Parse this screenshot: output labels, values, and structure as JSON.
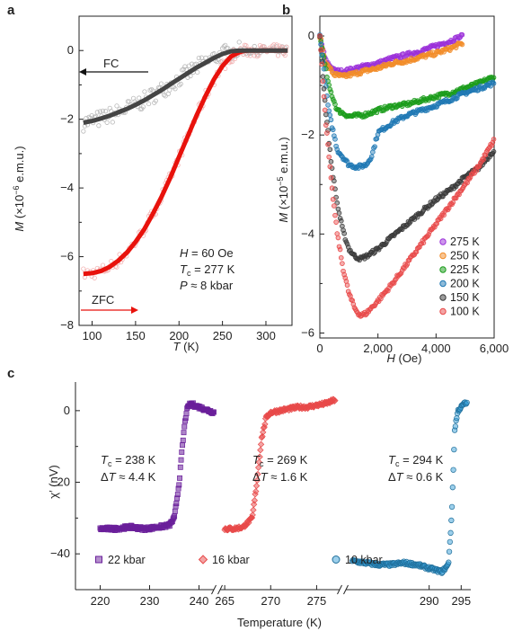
{
  "panels": {
    "a": {
      "letter": "a",
      "x_ticks": [
        "100",
        "150",
        "200",
        "250",
        "300"
      ],
      "y_ticks": [
        "0",
        "−2",
        "−4",
        "−6",
        "−8"
      ],
      "ylabel_pre": "M",
      "ylabel_mid": " (×10",
      "ylabel_sup": "−6",
      "ylabel_post": " e.m.u.)",
      "xlabel_var": "T",
      "xlabel_unit": " (K)",
      "fc_label": "FC",
      "zfc_label": "ZFC",
      "annot": {
        "h_var": "H",
        "h_val": " = 60 Oe",
        "tc_var": "T",
        "tc_sub": "c",
        "tc_val": " = 277 K",
        "p_var": "P",
        "p_val": " ≈ 8 kbar"
      }
    },
    "b": {
      "letter": "b",
      "x_ticks": [
        "0",
        "2,000",
        "4,000",
        "6,000"
      ],
      "y_ticks": [
        "0",
        "−2",
        "−4",
        "−6"
      ],
      "ylabel_pre": "M",
      "ylabel_mid": " (×10",
      "ylabel_sup": "−5",
      "ylabel_post": " e.m.u.)",
      "xlabel_var": "H",
      "xlabel_unit": " (Oe)",
      "legend": [
        "275 K",
        "250 K",
        "225 K",
        "200 K",
        "150 K",
        "100 K"
      ]
    },
    "c": {
      "letter": "c",
      "x_ticks_1": [
        "220",
        "230",
        "240"
      ],
      "x_ticks_2": [
        "265",
        "270",
        "275"
      ],
      "x_ticks_3": [
        "290",
        "295"
      ],
      "y_ticks": [
        "0",
        "−20",
        "−40"
      ],
      "ylabel": "χ′ (nV)",
      "xlabel": "Temperature (K)",
      "annots": [
        {
          "tc": " = 238 K",
          "dt": " ≈ 4.4 K"
        },
        {
          "tc": " = 269 K",
          "dt": " ≈ 1.6 K"
        },
        {
          "tc": " = 294 K",
          "dt": " ≈ 0.6 K"
        }
      ],
      "legend": [
        "22 kbar",
        "16 kbar",
        "10 kbar"
      ]
    }
  },
  "colors": {
    "fc": "#444444",
    "zfc": "#e8120c",
    "raw": "#b8b8b8",
    "raw_zfc": "#f3b3b3",
    "s275": "#9b30d9",
    "s250": "#f28c28",
    "s225": "#1a9c1a",
    "s200": "#1f78b4",
    "s150": "#3a3a3a",
    "s100": "#e84a4a",
    "c22": "#6a1f9a",
    "c16": "#e84a4a",
    "c10": "#3aa0d8"
  },
  "chart_data": [
    {
      "type": "line",
      "panel": "a",
      "xlabel": "T (K)",
      "ylabel": "M (×10−6 e.m.u.)",
      "xlim": [
        85,
        330
      ],
      "ylim": [
        -8,
        1
      ],
      "series": [
        {
          "name": "FC",
          "x": [
            90,
            100,
            110,
            120,
            130,
            140,
            150,
            160,
            170,
            180,
            190,
            200,
            210,
            220,
            230,
            240,
            250,
            260,
            270,
            280,
            290,
            300,
            310,
            320,
            325
          ],
          "values": [
            -2.1,
            -2.05,
            -1.98,
            -1.9,
            -1.8,
            -1.7,
            -1.58,
            -1.45,
            -1.3,
            -1.15,
            -0.98,
            -0.82,
            -0.66,
            -0.5,
            -0.36,
            -0.22,
            -0.1,
            -0.02,
            0,
            0,
            0,
            0,
            0,
            0,
            0
          ]
        },
        {
          "name": "ZFC",
          "x": [
            90,
            100,
            110,
            120,
            130,
            140,
            150,
            160,
            170,
            180,
            190,
            200,
            210,
            220,
            230,
            240,
            250,
            260,
            270,
            275,
            280,
            290,
            300,
            310,
            320,
            325
          ],
          "values": [
            -6.5,
            -6.48,
            -6.42,
            -6.3,
            -6.12,
            -5.88,
            -5.57,
            -5.2,
            -4.75,
            -4.25,
            -3.7,
            -3.1,
            -2.5,
            -1.9,
            -1.35,
            -0.85,
            -0.45,
            -0.17,
            -0.04,
            -0.01,
            0,
            0,
            0,
            0,
            0,
            0
          ]
        }
      ]
    },
    {
      "type": "scatter",
      "panel": "b",
      "xlabel": "H (Oe)",
      "ylabel": "M (×10−5 e.m.u.)",
      "xlim": [
        0,
        6000
      ],
      "ylim": [
        -6.1,
        0.4
      ],
      "series": [
        {
          "name": "275 K",
          "x": [
            0,
            200,
            500,
            800,
            1200,
            1600,
            2000,
            2500,
            3000,
            3500,
            4000,
            4500,
            4900
          ],
          "values": [
            0,
            -0.5,
            -0.7,
            -0.72,
            -0.66,
            -0.6,
            -0.55,
            -0.45,
            -0.38,
            -0.3,
            -0.2,
            -0.1,
            0
          ]
        },
        {
          "name": "250 K",
          "x": [
            0,
            200,
            500,
            800,
            1200,
            1600,
            2000,
            2500,
            3000,
            3500,
            4000,
            4500,
            4900
          ],
          "values": [
            0,
            -0.55,
            -0.78,
            -0.82,
            -0.76,
            -0.7,
            -0.65,
            -0.55,
            -0.5,
            -0.42,
            -0.35,
            -0.25,
            -0.15
          ]
        },
        {
          "name": "225 K",
          "x": [
            0,
            300,
            600,
            1000,
            1500,
            2000,
            2500,
            3000,
            3500,
            4000,
            4500,
            5000,
            5500,
            6000
          ],
          "values": [
            0,
            -1.0,
            -1.5,
            -1.62,
            -1.6,
            -1.5,
            -1.42,
            -1.38,
            -1.3,
            -1.22,
            -1.15,
            -1.05,
            -0.95,
            -0.82
          ]
        },
        {
          "name": "200 K",
          "x": [
            0,
            300,
            600,
            1000,
            1300,
            1600,
            1800,
            2000,
            2500,
            3000,
            3500,
            4000,
            4500,
            5000,
            5500,
            6000
          ],
          "values": [
            0,
            -1.5,
            -2.3,
            -2.6,
            -2.65,
            -2.6,
            -2.4,
            -1.95,
            -1.75,
            -1.6,
            -1.5,
            -1.4,
            -1.28,
            -1.15,
            -1.05,
            -0.95
          ]
        },
        {
          "name": "150 K",
          "x": [
            0,
            200,
            400,
            600,
            800,
            1000,
            1200,
            1400,
            1600,
            2000,
            2500,
            3000,
            3500,
            4000,
            4500,
            5000,
            5500,
            6000
          ],
          "values": [
            0,
            -1.5,
            -2.6,
            -3.4,
            -3.95,
            -4.3,
            -4.45,
            -4.5,
            -4.45,
            -4.3,
            -4.05,
            -3.8,
            -3.55,
            -3.3,
            -3.1,
            -2.85,
            -2.65,
            -2.3
          ]
        },
        {
          "name": "100 K",
          "x": [
            0,
            200,
            400,
            600,
            800,
            1000,
            1200,
            1400,
            1600,
            2000,
            2500,
            3000,
            3500,
            4000,
            4500,
            5000,
            5500,
            6000
          ],
          "values": [
            0,
            -1.7,
            -3.0,
            -4.0,
            -4.7,
            -5.2,
            -5.5,
            -5.65,
            -5.6,
            -5.35,
            -5.0,
            -4.6,
            -4.2,
            -3.8,
            -3.4,
            -3.0,
            -2.6,
            -2.1
          ]
        }
      ]
    },
    {
      "type": "scatter",
      "panel": "c",
      "xlabel": "Temperature (K)",
      "ylabel": "χ′ (nV)",
      "ylim": [
        -50,
        8
      ],
      "series": [
        {
          "name": "22 kbar",
          "x": [
            220,
            223,
            226,
            229,
            232,
            234,
            235,
            236,
            236.5,
            237,
            237.5,
            238,
            238.5,
            239,
            240,
            241,
            242,
            243
          ],
          "values": [
            -33,
            -33,
            -32.5,
            -33,
            -32.5,
            -32,
            -30,
            -20,
            -12,
            -5,
            0,
            1.5,
            2,
            1.5,
            1,
            0.5,
            0,
            -0.5
          ]
        },
        {
          "name": "16 kbar",
          "x": [
            265,
            266,
            267,
            268,
            268.5,
            269,
            269.5,
            270,
            271,
            272,
            273,
            274,
            275,
            276,
            277
          ],
          "values": [
            -33,
            -33,
            -32.5,
            -30,
            -20,
            -8,
            -2,
            -0.5,
            0,
            0.5,
            1,
            1,
            1.5,
            2,
            3
          ]
        },
        {
          "name": "10 kbar",
          "x": [
            278,
            280,
            282,
            284,
            286,
            288,
            290,
            292,
            293,
            293.5,
            294,
            294.5,
            295,
            295.5,
            296
          ],
          "values": [
            -42,
            -42.5,
            -43,
            -43,
            -42.5,
            -43,
            -44,
            -45,
            -43,
            -30,
            -5,
            0,
            1,
            2,
            2
          ]
        }
      ]
    }
  ]
}
